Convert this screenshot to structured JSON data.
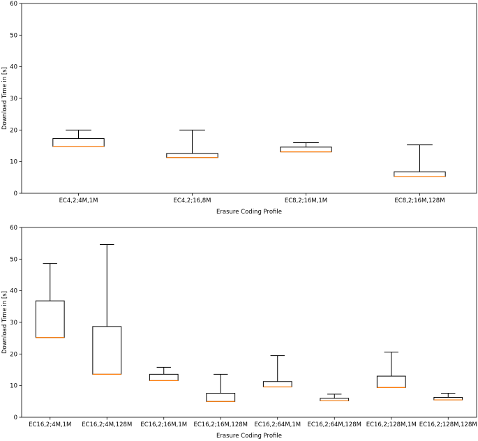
{
  "chart_data": [
    {
      "type": "box",
      "title": "",
      "xlabel": "Erasure Coding Profile",
      "ylabel": "Download Time in [s]",
      "ylim": [
        0,
        60
      ],
      "yticks": [
        0,
        10,
        20,
        30,
        40,
        50,
        60
      ],
      "grid": false,
      "categories": [
        "EC4,2;4M,1M",
        "EC4,2;16,8M",
        "EC8,2;16M,1M",
        "EC8,2;16M,128M"
      ],
      "boxes": [
        {
          "whislo": 14.8,
          "q1": 14.8,
          "med": 14.8,
          "q3": 17.3,
          "whishi": 20.0
        },
        {
          "whislo": 11.3,
          "q1": 11.3,
          "med": 11.3,
          "q3": 12.6,
          "whishi": 20.0
        },
        {
          "whislo": 13.1,
          "q1": 13.1,
          "med": 13.1,
          "q3": 14.6,
          "whishi": 16.0
        },
        {
          "whislo": 5.3,
          "q1": 5.3,
          "med": 5.3,
          "q3": 6.8,
          "whishi": 15.3
        }
      ]
    },
    {
      "type": "box",
      "title": "",
      "xlabel": "Erasure Coding Profile",
      "ylabel": "Download Time in [s]",
      "ylim": [
        0,
        60
      ],
      "yticks": [
        0,
        10,
        20,
        30,
        40,
        50,
        60
      ],
      "grid": false,
      "categories": [
        "EC16,2;4M,1M",
        "EC16,2;4M,128M",
        "EC16,2;16M,1M",
        "EC16,2;16M,128M",
        "EC16,2;64M,1M",
        "EC16,2;64M,128M",
        "EC16,2;128M,1M",
        "EC16,2;128M,128M"
      ],
      "boxes": [
        {
          "whislo": 25.2,
          "q1": 25.2,
          "med": 25.2,
          "q3": 36.8,
          "whishi": 48.6
        },
        {
          "whislo": 13.6,
          "q1": 13.6,
          "med": 13.6,
          "q3": 28.7,
          "whishi": 54.6
        },
        {
          "whislo": 11.6,
          "q1": 11.6,
          "med": 11.6,
          "q3": 13.6,
          "whishi": 15.8
        },
        {
          "whislo": 5.0,
          "q1": 5.0,
          "med": 5.0,
          "q3": 7.6,
          "whishi": 13.6
        },
        {
          "whislo": 9.6,
          "q1": 9.6,
          "med": 9.6,
          "q3": 11.3,
          "whishi": 19.5
        },
        {
          "whislo": 5.2,
          "q1": 5.2,
          "med": 5.2,
          "q3": 6.0,
          "whishi": 7.3
        },
        {
          "whislo": 9.4,
          "q1": 9.4,
          "med": 9.4,
          "q3": 13.0,
          "whishi": 20.6
        },
        {
          "whislo": 5.5,
          "q1": 5.5,
          "med": 5.5,
          "q3": 6.3,
          "whishi": 7.6
        }
      ]
    }
  ],
  "colors": {
    "box_edge": "#000000",
    "median": "#ff7f0e"
  }
}
